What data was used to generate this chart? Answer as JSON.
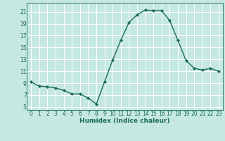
{
  "x": [
    0,
    1,
    2,
    3,
    4,
    5,
    6,
    7,
    8,
    9,
    10,
    11,
    12,
    13,
    14,
    15,
    16,
    17,
    18,
    19,
    20,
    21,
    22,
    23
  ],
  "y": [
    9.2,
    8.5,
    8.4,
    8.2,
    7.8,
    7.2,
    7.2,
    6.5,
    5.5,
    9.2,
    12.9,
    16.2,
    19.2,
    20.5,
    21.3,
    21.2,
    21.2,
    19.5,
    16.2,
    12.8,
    11.5,
    11.2,
    11.5,
    11.0
  ],
  "xlabel": "Humidex (Indice chaleur)",
  "ylim": [
    4.5,
    22.5
  ],
  "xlim": [
    -0.5,
    23.5
  ],
  "yticks": [
    5,
    7,
    9,
    11,
    13,
    15,
    17,
    19,
    21
  ],
  "xticks": [
    0,
    1,
    2,
    3,
    4,
    5,
    6,
    7,
    8,
    9,
    10,
    11,
    12,
    13,
    14,
    15,
    16,
    17,
    18,
    19,
    20,
    21,
    22,
    23
  ],
  "line_color": "#1a6b5a",
  "marker": "D",
  "marker_size": 2.0,
  "bg_color": "#c5e8e0",
  "grid_color": "#ffffff",
  "tick_label_color": "#1a6b5a",
  "xlabel_color": "#1a6b5a",
  "line_width": 1.0,
  "tick_fontsize": 5.5,
  "xlabel_fontsize": 6.5
}
